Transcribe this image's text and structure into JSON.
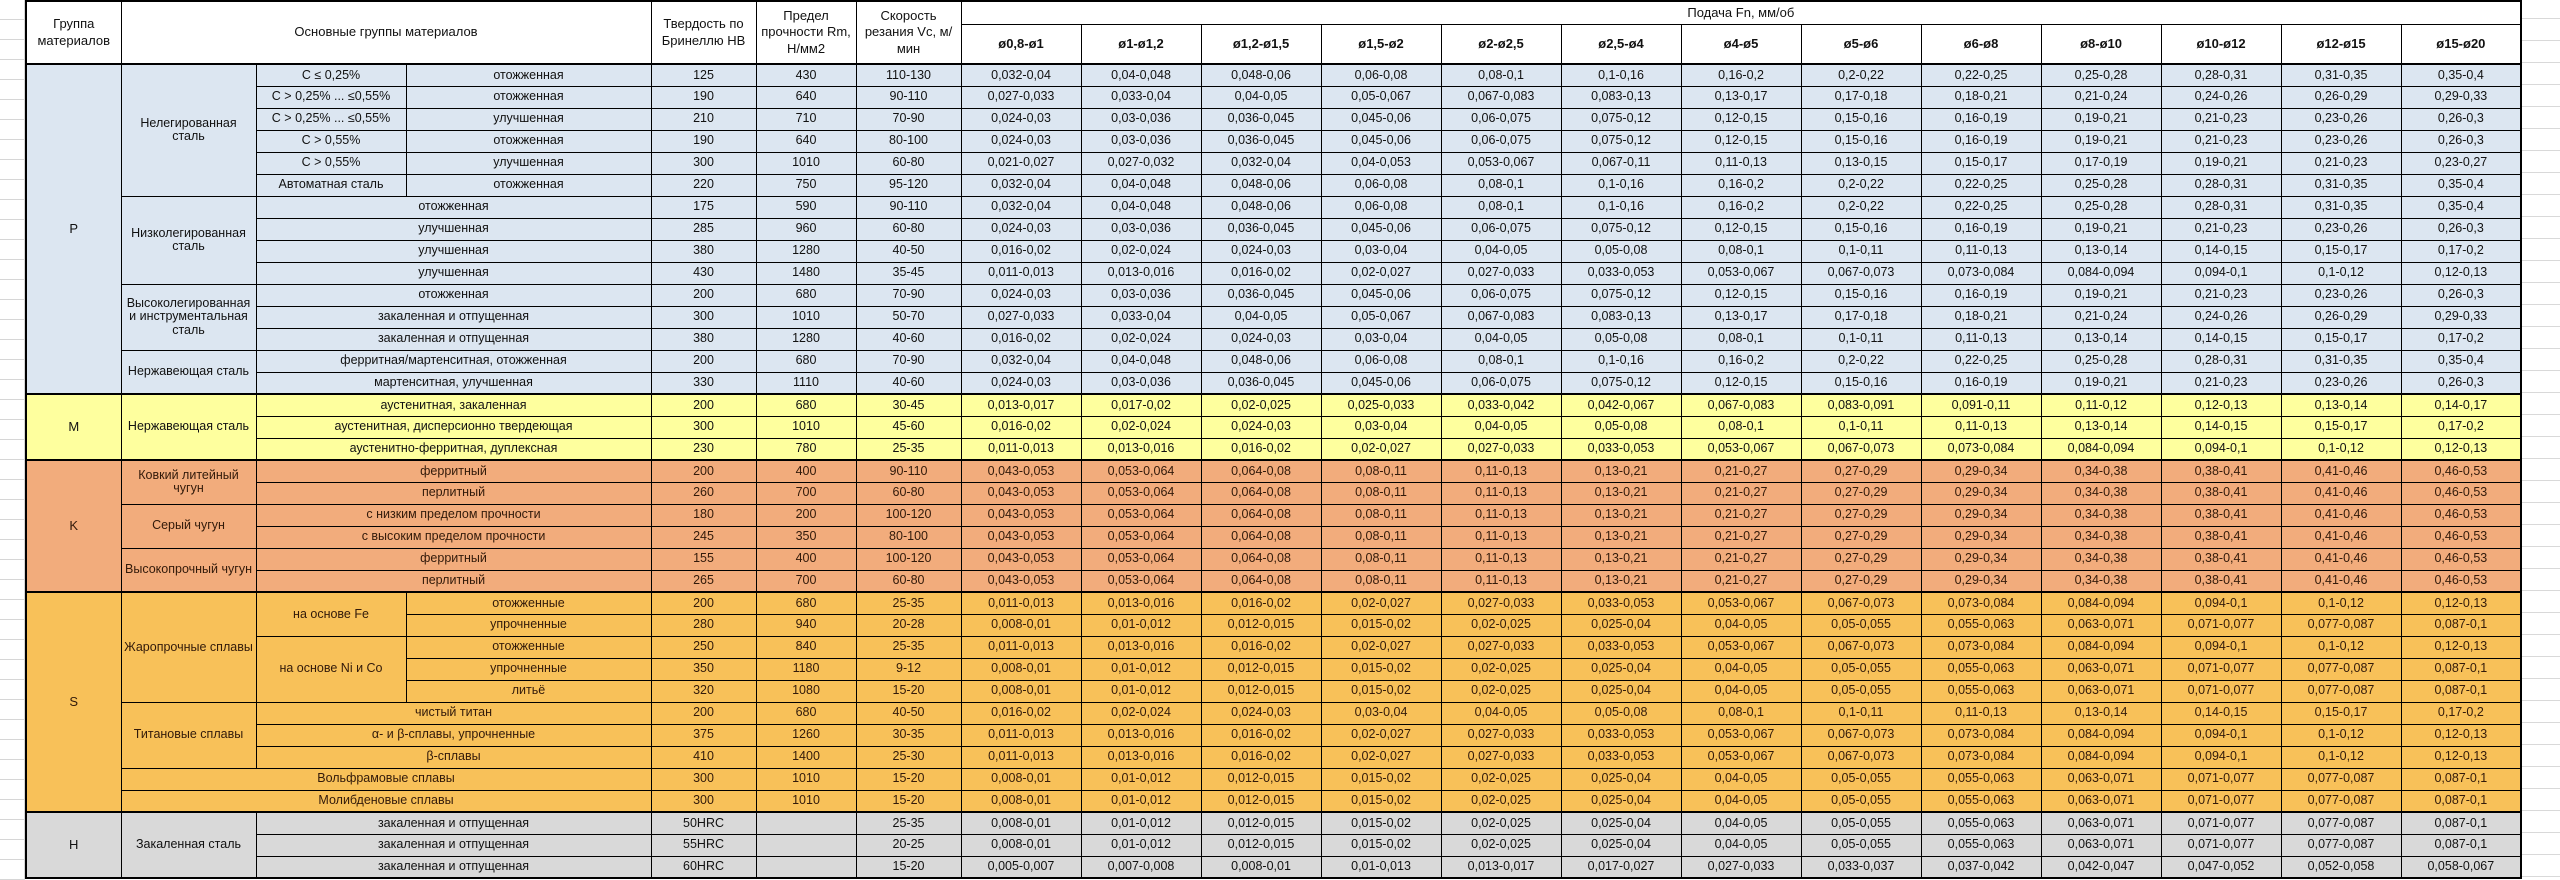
{
  "header": {
    "group": "Группа материалов",
    "materials": "Основные группы материалов",
    "hardness": "Твердость по Бринеллю HB",
    "strength": "Предел прочности Rm, Н/мм2",
    "speed": "Скорость резания Vc, м/мин",
    "feed": "Подача Fn, мм/об",
    "diameters": [
      "ø0,8-ø1",
      "ø1-ø1,2",
      "ø1,2-ø1,5",
      "ø1,5-ø2",
      "ø2-ø2,5",
      "ø2,5-ø4",
      "ø4-ø5",
      "ø5-ø6",
      "ø6-ø8",
      "ø8-ø10",
      "ø10-ø12",
      "ø12-ø15",
      "ø15-ø20"
    ]
  },
  "colors": {
    "group_p": "#DCE6F1",
    "group_m": "#FEFF9E",
    "group_k": "#F2AC7C",
    "group_s": "#F8C159",
    "group_h": "#D9D9D9",
    "border": "#000000"
  },
  "feed_patterns": {
    "A": [
      "0,032-0,04",
      "0,04-0,048",
      "0,048-0,06",
      "0,06-0,08",
      "0,08-0,1",
      "0,1-0,16",
      "0,16-0,2",
      "0,2-0,22",
      "0,22-0,25",
      "0,25-0,28",
      "0,28-0,31",
      "0,31-0,35",
      "0,35-0,4"
    ],
    "B": [
      "0,027-0,033",
      "0,033-0,04",
      "0,04-0,05",
      "0,05-0,067",
      "0,067-0,083",
      "0,083-0,13",
      "0,13-0,17",
      "0,17-0,18",
      "0,18-0,21",
      "0,21-0,24",
      "0,24-0,26",
      "0,26-0,29",
      "0,29-0,33"
    ],
    "C": [
      "0,024-0,03",
      "0,03-0,036",
      "0,036-0,045",
      "0,045-0,06",
      "0,06-0,075",
      "0,075-0,12",
      "0,12-0,15",
      "0,15-0,16",
      "0,16-0,19",
      "0,19-0,21",
      "0,21-0,23",
      "0,23-0,26",
      "0,26-0,3"
    ],
    "D": [
      "0,021-0,027",
      "0,027-0,032",
      "0,032-0,04",
      "0,04-0,053",
      "0,053-0,067",
      "0,067-0,11",
      "0,11-0,13",
      "0,13-0,15",
      "0,15-0,17",
      "0,17-0,19",
      "0,19-0,21",
      "0,21-0,23",
      "0,23-0,27"
    ],
    "E": [
      "0,016-0,02",
      "0,02-0,024",
      "0,024-0,03",
      "0,03-0,04",
      "0,04-0,05",
      "0,05-0,08",
      "0,08-0,1",
      "0,1-0,11",
      "0,11-0,13",
      "0,13-0,14",
      "0,14-0,15",
      "0,15-0,17",
      "0,17-0,2"
    ],
    "F": [
      "0,011-0,013",
      "0,013-0,016",
      "0,016-0,02",
      "0,02-0,027",
      "0,027-0,033",
      "0,033-0,053",
      "0,053-0,067",
      "0,067-0,073",
      "0,073-0,084",
      "0,084-0,094",
      "0,094-0,1",
      "0,1-0,12",
      "0,12-0,13"
    ],
    "G": [
      "0,013-0,017",
      "0,017-0,02",
      "0,02-0,025",
      "0,025-0,033",
      "0,033-0,042",
      "0,042-0,067",
      "0,067-0,083",
      "0,083-0,091",
      "0,091-0,11",
      "0,11-0,12",
      "0,12-0,13",
      "0,13-0,14",
      "0,14-0,17"
    ],
    "K": [
      "0,043-0,053",
      "0,053-0,064",
      "0,064-0,08",
      "0,08-0,11",
      "0,11-0,13",
      "0,13-0,21",
      "0,21-0,27",
      "0,27-0,29",
      "0,29-0,34",
      "0,34-0,38",
      "0,38-0,41",
      "0,41-0,46",
      "0,46-0,53"
    ],
    "H": [
      "0,008-0,01",
      "0,01-0,012",
      "0,012-0,015",
      "0,015-0,02",
      "0,02-0,025",
      "0,025-0,04",
      "0,04-0,05",
      "0,05-0,055",
      "0,055-0,063",
      "0,063-0,071",
      "0,071-0,077",
      "0,077-0,087",
      "0,087-0,1"
    ],
    "J": [
      "0,005-0,007",
      "0,007-0,008",
      "0,008-0,01",
      "0,01-0,013",
      "0,013-0,017",
      "0,017-0,027",
      "0,027-0,033",
      "0,033-0,037",
      "0,037-0,042",
      "0,042-0,047",
      "0,047-0,052",
      "0,052-0,058",
      "0,058-0,067"
    ]
  },
  "table": {
    "rows": [
      {
        "g": "p",
        "start": true,
        "cells": [
          {
            "t": "P",
            "rs": 15,
            "cls": "grpcell"
          },
          {
            "t": "Нелегированная сталь",
            "rs": 6
          },
          {
            "t": "С ≤ 0,25%"
          },
          {
            "t": "отожженная"
          }
        ],
        "hb": "125",
        "rm": "430",
        "vc": "110-130",
        "fp": "A"
      },
      {
        "g": "p",
        "cells": [
          {
            "t": "С > 0,25% ... ≤0,55%"
          },
          {
            "t": "отожженная"
          }
        ],
        "hb": "190",
        "rm": "640",
        "vc": "90-110",
        "fp": "B"
      },
      {
        "g": "p",
        "cells": [
          {
            "t": "С > 0,25% ... ≤0,55%"
          },
          {
            "t": "улучшенная"
          }
        ],
        "hb": "210",
        "rm": "710",
        "vc": "70-90",
        "fp": "C"
      },
      {
        "g": "p",
        "cells": [
          {
            "t": "С > 0,55%"
          },
          {
            "t": "отожженная"
          }
        ],
        "hb": "190",
        "rm": "640",
        "vc": "80-100",
        "fp": "C"
      },
      {
        "g": "p",
        "cells": [
          {
            "t": "С > 0,55%"
          },
          {
            "t": "улучшенная"
          }
        ],
        "hb": "300",
        "rm": "1010",
        "vc": "60-80",
        "fp": "D"
      },
      {
        "g": "p",
        "cells": [
          {
            "t": "Автоматная сталь"
          },
          {
            "t": "отожженная"
          }
        ],
        "hb": "220",
        "rm": "750",
        "vc": "95-120",
        "fp": "A"
      },
      {
        "g": "p",
        "cells": [
          {
            "t": "Низколегированная сталь",
            "rs": 4
          },
          {
            "t": "отожженная",
            "cs": 2
          }
        ],
        "hb": "175",
        "rm": "590",
        "vc": "90-110",
        "fp": "A"
      },
      {
        "g": "p",
        "cells": [
          {
            "t": "улучшенная",
            "cs": 2
          }
        ],
        "hb": "285",
        "rm": "960",
        "vc": "60-80",
        "fp": "C"
      },
      {
        "g": "p",
        "cells": [
          {
            "t": "улучшенная",
            "cs": 2
          }
        ],
        "hb": "380",
        "rm": "1280",
        "vc": "40-50",
        "fp": "E"
      },
      {
        "g": "p",
        "cells": [
          {
            "t": "улучшенная",
            "cs": 2
          }
        ],
        "hb": "430",
        "rm": "1480",
        "vc": "35-45",
        "fp": "F"
      },
      {
        "g": "p",
        "cells": [
          {
            "t": "Высоколегированная и инструментальная сталь",
            "rs": 3
          },
          {
            "t": "отожженная",
            "cs": 2
          }
        ],
        "hb": "200",
        "rm": "680",
        "vc": "70-90",
        "fp": "C"
      },
      {
        "g": "p",
        "cells": [
          {
            "t": "закаленная и отпущенная",
            "cs": 2
          }
        ],
        "hb": "300",
        "rm": "1010",
        "vc": "50-70",
        "fp": "B"
      },
      {
        "g": "p",
        "cells": [
          {
            "t": "закаленная и отпущенная",
            "cs": 2
          }
        ],
        "hb": "380",
        "rm": "1280",
        "vc": "40-60",
        "fp": "E"
      },
      {
        "g": "p",
        "cells": [
          {
            "t": "Нержавеющая сталь",
            "rs": 2
          },
          {
            "t": "ферритная/мартенситная, отожженная",
            "cs": 2
          }
        ],
        "hb": "200",
        "rm": "680",
        "vc": "70-90",
        "fp": "A"
      },
      {
        "g": "p",
        "cells": [
          {
            "t": "мартенситная, улучшенная",
            "cs": 2
          }
        ],
        "hb": "330",
        "rm": "1110",
        "vc": "40-60",
        "fp": "C"
      },
      {
        "g": "m",
        "start": true,
        "cells": [
          {
            "t": "M",
            "rs": 3,
            "cls": "grpcell"
          },
          {
            "t": "Нержавеющая сталь",
            "rs": 3
          },
          {
            "t": "аустенитная, закаленная",
            "cs": 2
          }
        ],
        "hb": "200",
        "rm": "680",
        "vc": "30-45",
        "fp": "G"
      },
      {
        "g": "m",
        "cells": [
          {
            "t": "аустенитная, дисперсионно твердеющая",
            "cs": 2
          }
        ],
        "hb": "300",
        "rm": "1010",
        "vc": "45-60",
        "fp": "E"
      },
      {
        "g": "m",
        "cells": [
          {
            "t": "аустенитно-ферритная, дуплексная",
            "cs": 2
          }
        ],
        "hb": "230",
        "rm": "780",
        "vc": "25-35",
        "fp": "F"
      },
      {
        "g": "k",
        "start": true,
        "cells": [
          {
            "t": "K",
            "rs": 6,
            "cls": "grpcell"
          },
          {
            "t": "Ковкий литейный чугун",
            "rs": 2
          },
          {
            "t": "ферритный",
            "cs": 2
          }
        ],
        "hb": "200",
        "rm": "400",
        "vc": "90-110",
        "fp": "K"
      },
      {
        "g": "k",
        "cells": [
          {
            "t": "перлитный",
            "cs": 2
          }
        ],
        "hb": "260",
        "rm": "700",
        "vc": "60-80",
        "fp": "K"
      },
      {
        "g": "k",
        "cells": [
          {
            "t": "Серый чугун",
            "rs": 2
          },
          {
            "t": "с низким пределом прочности",
            "cs": 2
          }
        ],
        "hb": "180",
        "rm": "200",
        "vc": "100-120",
        "fp": "K"
      },
      {
        "g": "k",
        "cells": [
          {
            "t": "с высоким пределом прочности",
            "cs": 2
          }
        ],
        "hb": "245",
        "rm": "350",
        "vc": "80-100",
        "fp": "K"
      },
      {
        "g": "k",
        "cells": [
          {
            "t": "Высокопрочный чугун",
            "rs": 2
          },
          {
            "t": "ферритный",
            "cs": 2
          }
        ],
        "hb": "155",
        "rm": "400",
        "vc": "100-120",
        "fp": "K"
      },
      {
        "g": "k",
        "cells": [
          {
            "t": "перлитный",
            "cs": 2
          }
        ],
        "hb": "265",
        "rm": "700",
        "vc": "60-80",
        "fp": "K"
      },
      {
        "g": "s",
        "start": true,
        "cells": [
          {
            "t": "S",
            "rs": 10,
            "cls": "grpcell"
          },
          {
            "t": "Жаропрочные сплавы",
            "rs": 5
          },
          {
            "t": "на основе Fe",
            "rs": 2
          },
          {
            "t": "отожженные"
          }
        ],
        "hb": "200",
        "rm": "680",
        "vc": "25-35",
        "fp": "F"
      },
      {
        "g": "s",
        "cells": [
          {
            "t": "упрочненные"
          }
        ],
        "hb": "280",
        "rm": "940",
        "vc": "20-28",
        "fp": "H"
      },
      {
        "g": "s",
        "cells": [
          {
            "t": "на основе Ni и Co",
            "rs": 3
          },
          {
            "t": "отожженные"
          }
        ],
        "hb": "250",
        "rm": "840",
        "vc": "25-35",
        "fp": "F"
      },
      {
        "g": "s",
        "cells": [
          {
            "t": "упрочненные"
          }
        ],
        "hb": "350",
        "rm": "1180",
        "vc": "9-12",
        "fp": "H"
      },
      {
        "g": "s",
        "cells": [
          {
            "t": "литьё"
          }
        ],
        "hb": "320",
        "rm": "1080",
        "vc": "15-20",
        "fp": "H"
      },
      {
        "g": "s",
        "cells": [
          {
            "t": "Титановые сплавы",
            "rs": 3
          },
          {
            "t": "чистый титан",
            "cs": 2
          }
        ],
        "hb": "200",
        "rm": "680",
        "vc": "40-50",
        "fp": "E"
      },
      {
        "g": "s",
        "cells": [
          {
            "t": "α- и β-сплавы, упрочненные",
            "cs": 2
          }
        ],
        "hb": "375",
        "rm": "1260",
        "vc": "30-35",
        "fp": "F"
      },
      {
        "g": "s",
        "cells": [
          {
            "t": "β-сплавы",
            "cs": 2
          }
        ],
        "hb": "410",
        "rm": "1400",
        "vc": "25-30",
        "fp": "F"
      },
      {
        "g": "s",
        "cells": [
          {
            "t": "Вольфрамовые сплавы",
            "cs": 3
          }
        ],
        "hb": "300",
        "rm": "1010",
        "vc": "15-20",
        "fp": "H"
      },
      {
        "g": "s",
        "cells": [
          {
            "t": "Молибденовые сплавы",
            "cs": 3
          }
        ],
        "hb": "300",
        "rm": "1010",
        "vc": "15-20",
        "fp": "H"
      },
      {
        "g": "h",
        "start": true,
        "cells": [
          {
            "t": "H",
            "rs": 3,
            "cls": "grpcell"
          },
          {
            "t": "Закаленная сталь",
            "rs": 3
          },
          {
            "t": "закаленная и отпущенная",
            "cs": 2
          }
        ],
        "hb": "50HRC",
        "rm": "",
        "vc": "25-35",
        "fp": "H"
      },
      {
        "g": "h",
        "cells": [
          {
            "t": "закаленная и отпущенная",
            "cs": 2
          }
        ],
        "hb": "55HRC",
        "rm": "",
        "vc": "20-25",
        "fp": "H"
      },
      {
        "g": "h",
        "cells": [
          {
            "t": "закаленная и отпущенная",
            "cs": 2
          }
        ],
        "hb": "60HRC",
        "rm": "",
        "vc": "15-20",
        "fp": "J"
      }
    ]
  }
}
